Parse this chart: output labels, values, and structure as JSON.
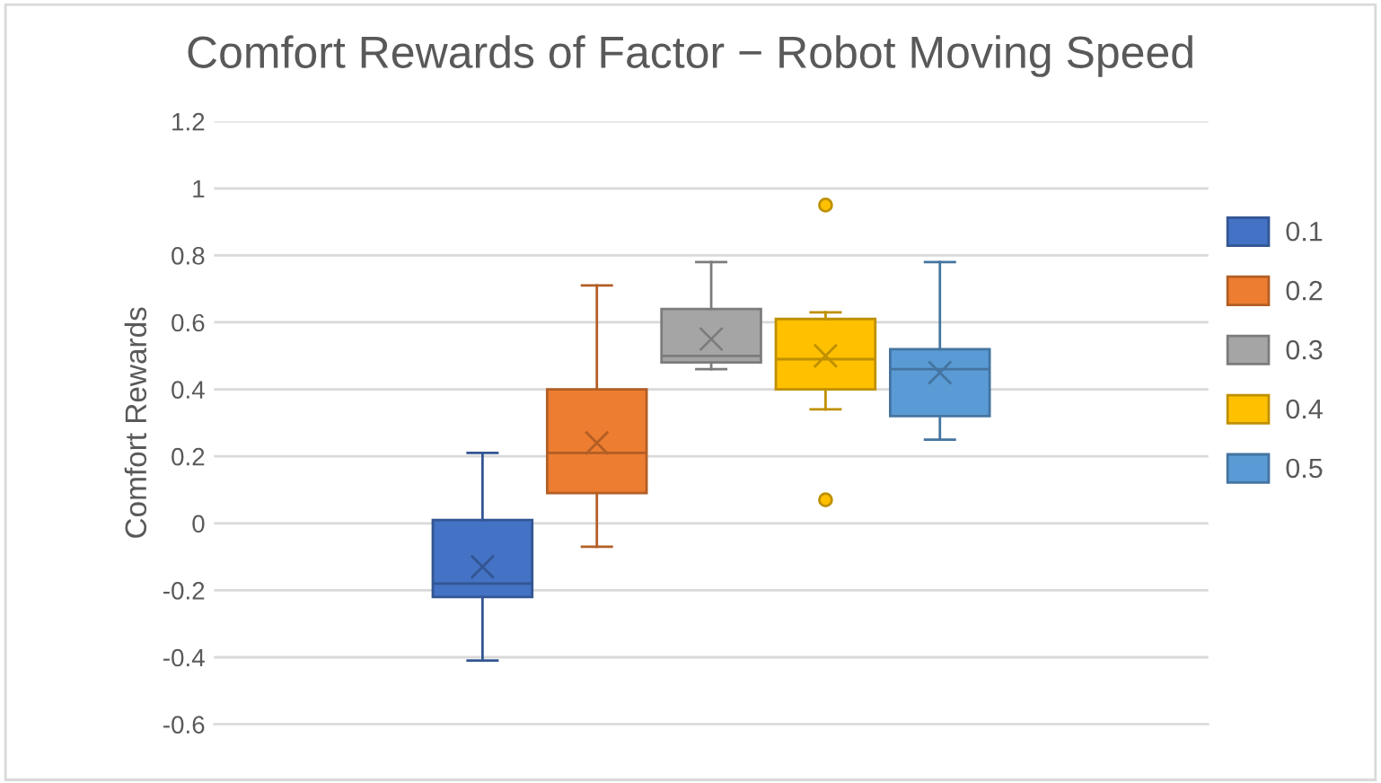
{
  "chart_data": {
    "type": "box",
    "title": "Comfort Rewards of Factor − Robot Moving Speed",
    "ylabel": "Comfort Rewards",
    "categories": [
      null
    ],
    "series": [
      {
        "name": "0.1",
        "color": "#4472c4",
        "boxes": [
          {
            "low": -0.41,
            "q1": -0.22,
            "median": -0.18,
            "q3": 0.01,
            "high": 0.21,
            "mean": -0.13
          }
        ]
      },
      {
        "name": "0.2",
        "color": "#ed7d31",
        "boxes": [
          {
            "low": -0.07,
            "q1": 0.09,
            "median": 0.21,
            "q3": 0.4,
            "high": 0.71,
            "mean": 0.24
          }
        ]
      },
      {
        "name": "0.3",
        "color": "#a5a5a5",
        "boxes": [
          {
            "low": 0.46,
            "q1": 0.48,
            "median": 0.5,
            "q3": 0.64,
            "high": 0.78,
            "mean": 0.55
          }
        ]
      },
      {
        "name": "0.4",
        "color": "#ffc000",
        "boxes": [
          {
            "low": 0.34,
            "q1": 0.4,
            "median": 0.49,
            "q3": 0.61,
            "high": 0.63,
            "mean": 0.5,
            "outliers": [
              0.95,
              0.07
            ]
          }
        ]
      },
      {
        "name": "0.5",
        "color": "#5b9bd5",
        "boxes": [
          {
            "low": 0.25,
            "q1": 0.32,
            "median": 0.46,
            "q3": 0.52,
            "high": 0.78,
            "mean": 0.45
          }
        ]
      }
    ],
    "ylim": [
      -0.6,
      1.2
    ],
    "yticks": [
      -0.6,
      -0.4,
      -0.2,
      0,
      0.2,
      0.4,
      0.6,
      0.8,
      1,
      1.2
    ],
    "grid": "y",
    "legend": "right",
    "marker": "cross"
  }
}
